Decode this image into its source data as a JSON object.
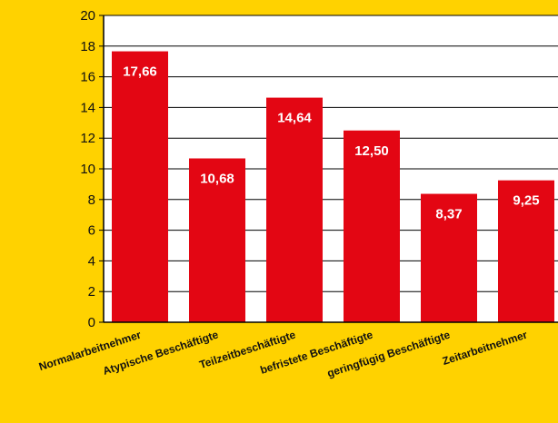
{
  "chart_data": {
    "type": "bar",
    "categories": [
      "Normalarbeitnehmer",
      "Atypische Beschäftigte",
      "Teilzeitbeschäftigte",
      "befristete Beschäftigte",
      "geringfügig Beschäftigte",
      "Zeitarbeitnehmer"
    ],
    "values": [
      17.66,
      10.68,
      14.64,
      12.5,
      8.37,
      9.25
    ],
    "value_labels": [
      "17,66",
      "10,68",
      "14,64",
      "12,50",
      "8,37",
      "9,25"
    ],
    "y_ticks": [
      "0",
      "2",
      "4",
      "6",
      "8",
      "10",
      "12",
      "14",
      "16",
      "18",
      "20"
    ],
    "ylim": [
      0,
      20
    ],
    "grid": true,
    "colors": {
      "background": "#FFD200",
      "plot_area": "#FFFFFF",
      "bar": "#E30613",
      "axis": "#000000"
    }
  }
}
